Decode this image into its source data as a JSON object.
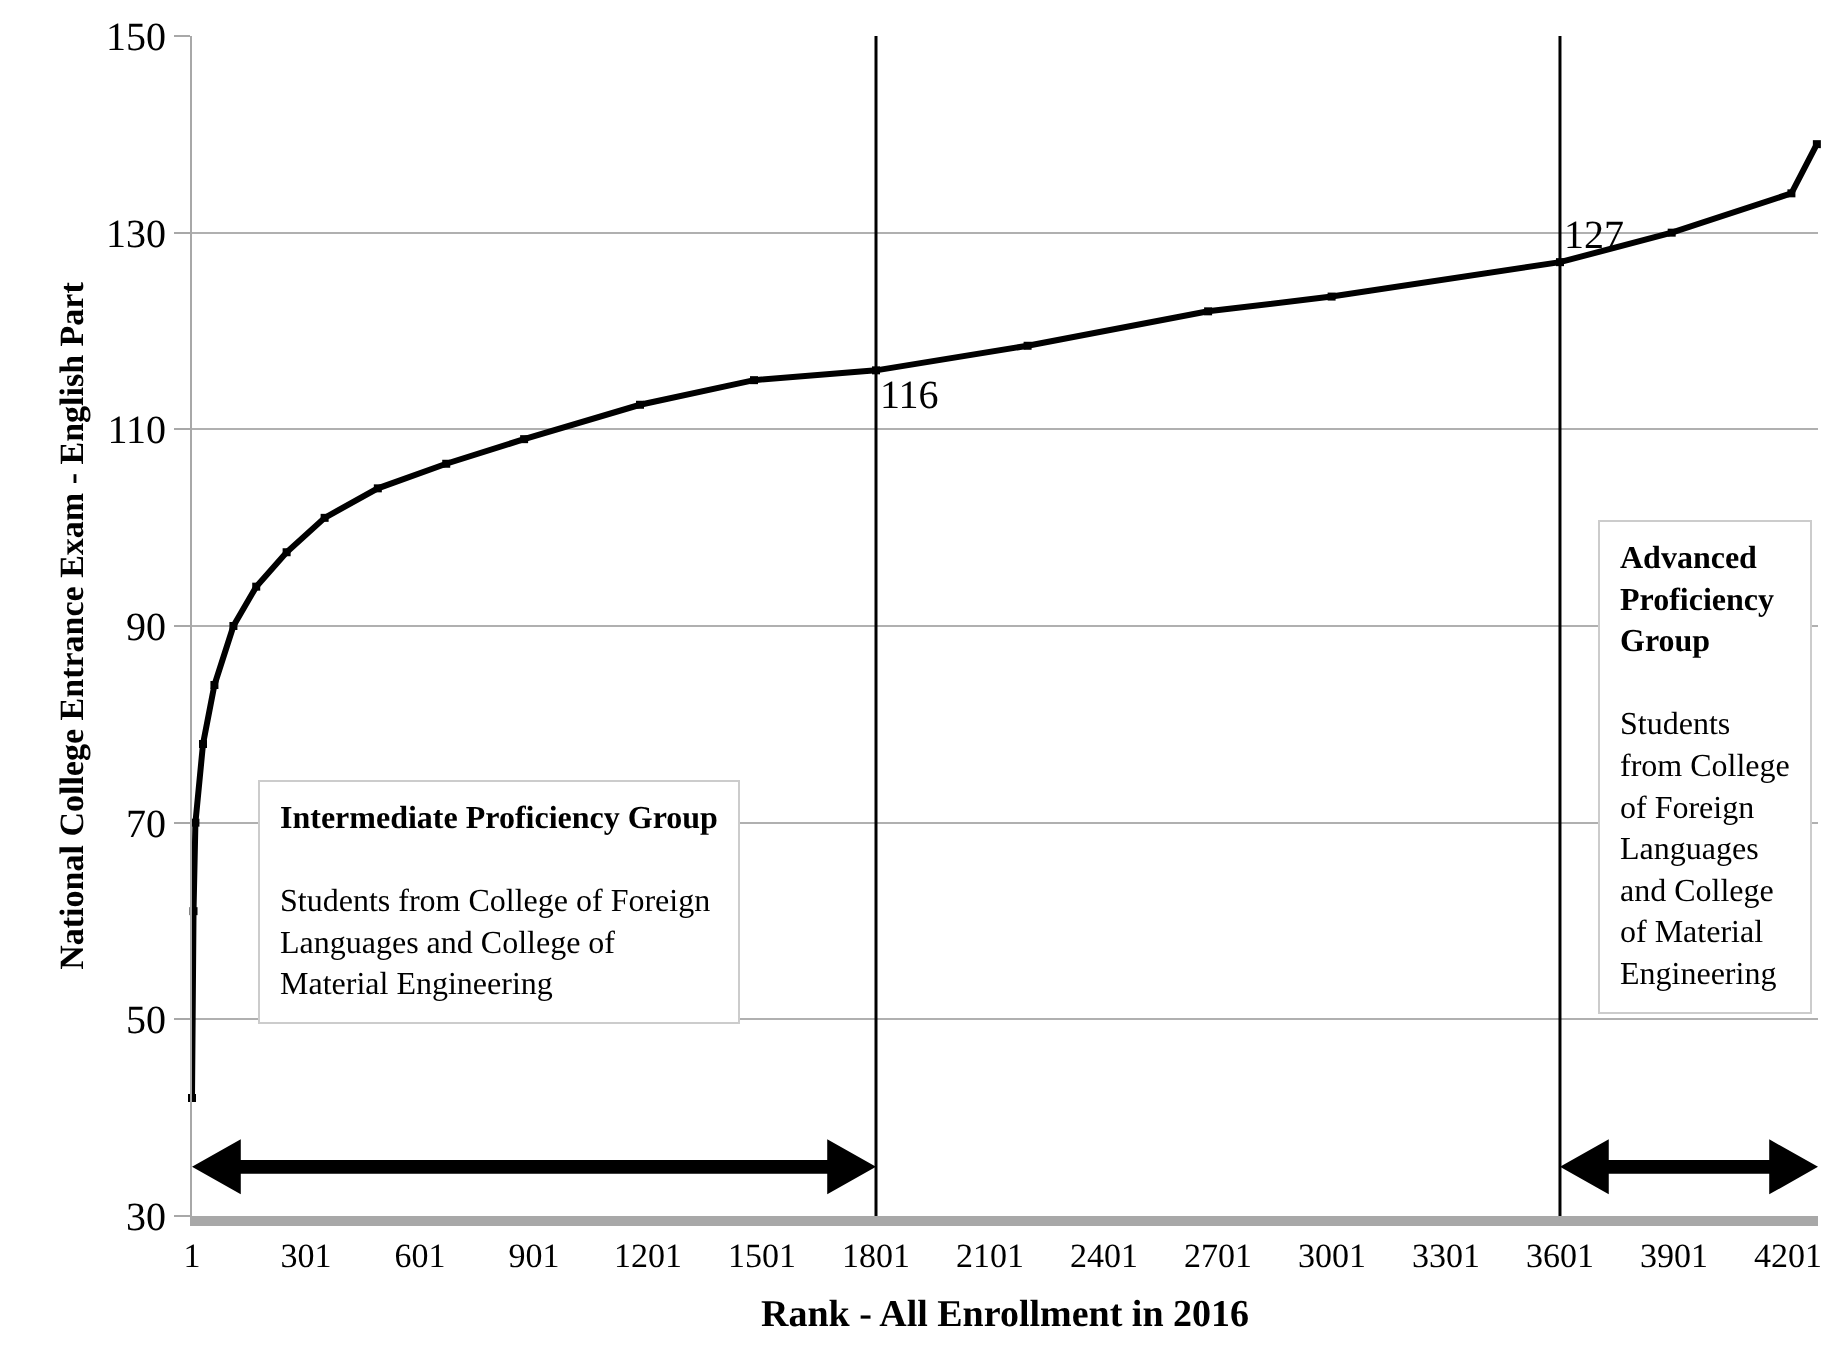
{
  "chart_data": {
    "type": "line",
    "xlabel": "Rank - All Enrollment in 2016",
    "ylabel": "National College Entrance Exam - English Part",
    "x": [
      1,
      5,
      10,
      30,
      60,
      110,
      170,
      250,
      350,
      490,
      670,
      875,
      1180,
      1480,
      1801,
      2200,
      2675,
      3000,
      3601,
      3895,
      4210,
      4277
    ],
    "series": [
      {
        "color": "#000000",
        "values": [
          42,
          61,
          70,
          78,
          84,
          90,
          94,
          97.5,
          101,
          104,
          106.5,
          109,
          112.5,
          115,
          116,
          118.5,
          122,
          123.5,
          127,
          130,
          134,
          139
        ]
      }
    ],
    "xlim": [
      1,
      4280
    ],
    "xticks": [
      1,
      301,
      601,
      901,
      1201,
      1501,
      1801,
      2101,
      2401,
      2701,
      3001,
      3301,
      3601,
      3901,
      4201
    ],
    "ylim": [
      30,
      150
    ],
    "yticks": [
      30,
      50,
      70,
      90,
      110,
      130,
      150
    ],
    "grid": "y",
    "marker": "square",
    "line_style": "solid",
    "ref_lines": [
      {
        "axis": "x",
        "value": 1801,
        "color": "#000000"
      },
      {
        "axis": "x",
        "value": 3601,
        "color": "#000000"
      }
    ],
    "annotations": [
      {
        "text": "116",
        "x": 1801,
        "y": 116
      },
      {
        "text": "127",
        "x": 3601,
        "y": 127
      },
      "Intermediate Proficiency Group\n\nStudents from College of Foreign\nLanguages and College of\nMaterial Engineering",
      "Advanced\nProficiency\nGroup\n\nStudents\nfrom College\nof Foreign\nLanguages\nand College\nof Material\nEngineering"
    ]
  }
}
